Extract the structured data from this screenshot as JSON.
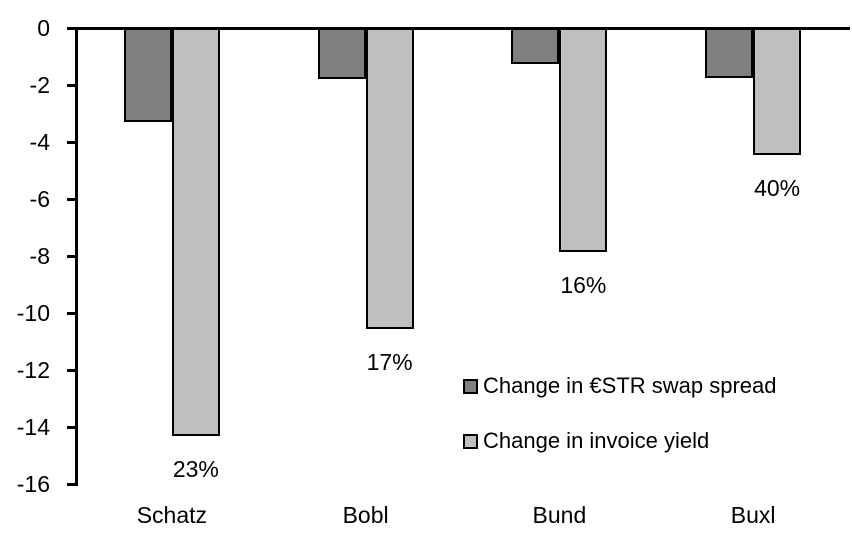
{
  "chart_data": {
    "type": "bar",
    "orientation": "vertical",
    "categories": [
      "Schatz",
      "Bobl",
      "Bund",
      "Buxl"
    ],
    "series": [
      {
        "key": "swap-spread",
        "name": "Change in €STR swap spread",
        "color": "#7f7f7f",
        "values": [
          -3.3,
          -1.8,
          -1.25,
          -1.75
        ]
      },
      {
        "key": "invoice-yield",
        "name": "Change in invoice yield",
        "color": "#bfbfbf",
        "values": [
          -14.3,
          -10.55,
          -7.85,
          -4.45
        ],
        "data_labels": [
          "23%",
          "17%",
          "16%",
          "40%"
        ]
      }
    ],
    "ylim": [
      -16,
      0
    ],
    "yticks": [
      0,
      -2,
      -4,
      -6,
      -8,
      -10,
      -12,
      -14,
      -16
    ],
    "grid": false,
    "legend_position": "inside-bottom-right",
    "axis_color": "#000000",
    "bar_border_color": "#000000",
    "background": "#ffffff"
  }
}
